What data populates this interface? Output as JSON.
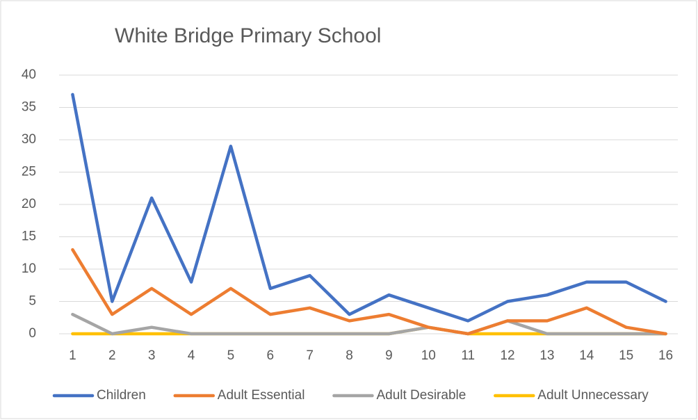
{
  "chart_data": {
    "type": "line",
    "title": "White Bridge Primary School",
    "categories": [
      "1",
      "2",
      "3",
      "4",
      "5",
      "6",
      "7",
      "8",
      "9",
      "10",
      "11",
      "12",
      "13",
      "14",
      "15",
      "16"
    ],
    "series": [
      {
        "name": "Children",
        "color": "#4472c4",
        "values": [
          37,
          5,
          21,
          8,
          29,
          7,
          9,
          3,
          6,
          4,
          2,
          5,
          6,
          8,
          8,
          5
        ]
      },
      {
        "name": "Adult Essential",
        "color": "#ed7d31",
        "values": [
          13,
          3,
          7,
          3,
          7,
          3,
          4,
          2,
          3,
          1,
          0,
          2,
          2,
          4,
          1,
          0
        ]
      },
      {
        "name": "Adult Desirable",
        "color": "#a5a5a5",
        "values": [
          3,
          0,
          1,
          0,
          0,
          0,
          0,
          0,
          0,
          1,
          0,
          2,
          0,
          0,
          0,
          0
        ]
      },
      {
        "name": "Adult Unnecessary",
        "color": "#ffc000",
        "values": [
          0,
          0,
          0,
          0,
          0,
          0,
          0,
          0,
          0,
          1,
          0,
          0,
          0,
          0,
          0,
          0
        ]
      }
    ],
    "ylim": [
      0,
      40
    ],
    "yticks": [
      0,
      5,
      10,
      15,
      20,
      25,
      30,
      35,
      40
    ],
    "grid": true,
    "legend": "bottom"
  }
}
